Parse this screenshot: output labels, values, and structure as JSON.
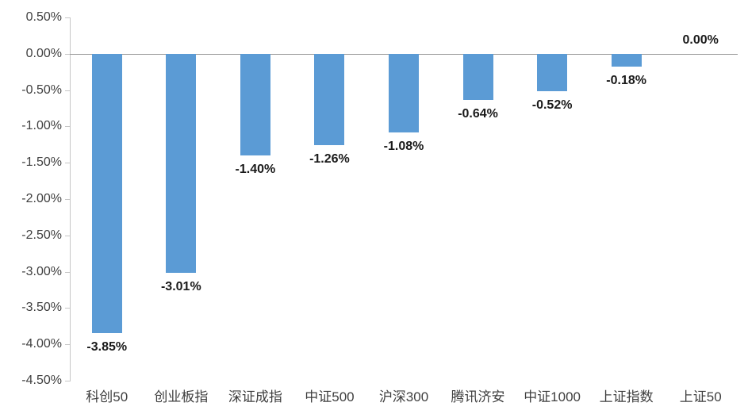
{
  "chart_data": {
    "type": "bar",
    "title": "",
    "xlabel": "",
    "ylabel": "",
    "categories": [
      "科创50",
      "创业板指",
      "深证成指",
      "中证500",
      "沪深300",
      "腾讯济安",
      "中证1000",
      "上证指数",
      "上证50"
    ],
    "values": [
      -3.85,
      -3.01,
      -1.4,
      -1.26,
      -1.08,
      -0.64,
      -0.52,
      -0.18,
      0.0
    ],
    "data_labels": [
      "-3.85%",
      "-3.01%",
      "-1.40%",
      "-1.26%",
      "-1.08%",
      "-0.64%",
      "-0.52%",
      "-0.18%",
      "0.00%"
    ],
    "ylim": [
      -4.5,
      0.5
    ],
    "ytick_step": 0.5,
    "ytick_values": [
      0.5,
      0.0,
      -0.5,
      -1.0,
      -1.5,
      -2.0,
      -2.5,
      -3.0,
      -3.5,
      -4.0,
      -4.5
    ],
    "ytick_labels": [
      "0.50%",
      "0.00%",
      "-0.50%",
      "-1.00%",
      "-1.50%",
      "-2.00%",
      "-2.50%",
      "-3.00%",
      "-3.50%",
      "-4.00%",
      "-4.50%"
    ],
    "grid": false,
    "legend": "none",
    "colors": {
      "bar_fill": "#5B9BD5",
      "axis_line": "#C6C6C6",
      "zero_line": "#9A9A9A",
      "tick_label_text": "#3F3F3F",
      "data_label_text": "#1A1A1A",
      "category_label_text": "#3F3F3F"
    }
  }
}
